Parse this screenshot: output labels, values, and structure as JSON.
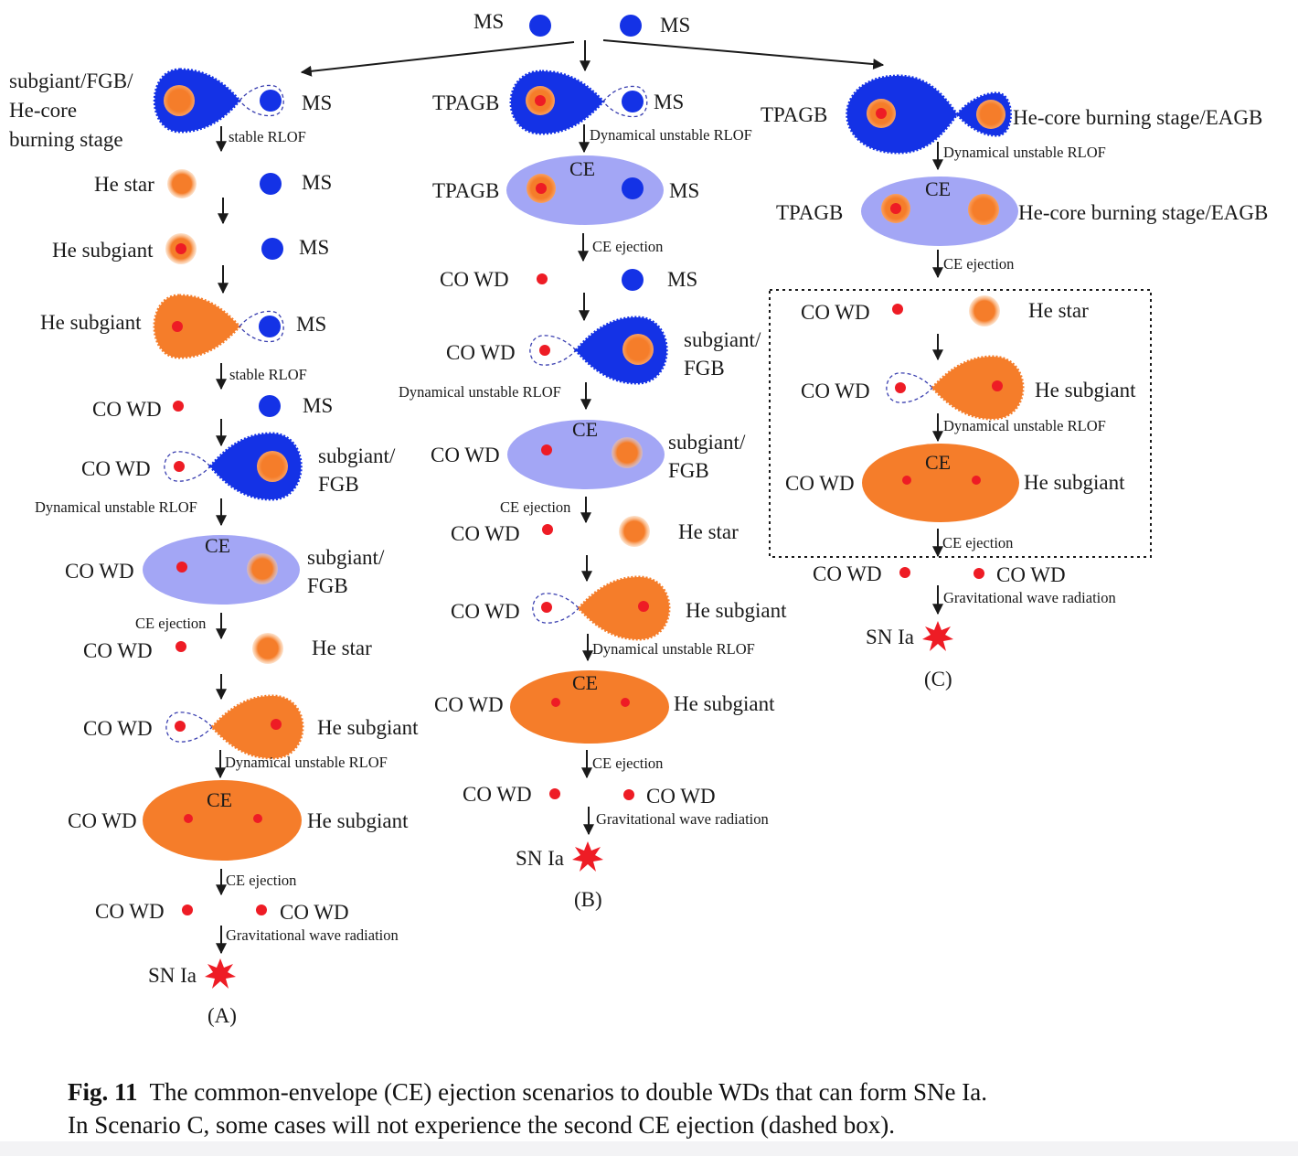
{
  "top": {
    "left_star": "MS",
    "right_star": "MS"
  },
  "scenario_a": {
    "rows": [
      {
        "left": "subgiant/FGB/",
        "left2": "He-core",
        "left3": "burning stage",
        "right": "MS"
      },
      {
        "process": "stable RLOF"
      },
      {
        "left": "He star",
        "right": "MS"
      },
      {
        "left": "He subgiant",
        "right": "MS"
      },
      {
        "left": "He subgiant",
        "right": "MS"
      },
      {
        "process": "stable RLOF"
      },
      {
        "left": "CO WD",
        "right": "MS"
      },
      {
        "left": "CO WD",
        "right": "subgiant/",
        "right2": "FGB"
      },
      {
        "process": "Dynamical unstable RLOF"
      },
      {
        "ce": "CE",
        "left": "CO WD",
        "right": "subgiant/",
        "right2": "FGB"
      },
      {
        "process": "CE ejection"
      },
      {
        "left": "CO WD",
        "right": "He star"
      },
      {
        "left": "CO WD",
        "right": "He subgiant"
      },
      {
        "process": "Dynamical unstable RLOF"
      },
      {
        "ce": "CE",
        "left": "CO WD",
        "right": "He subgiant"
      },
      {
        "process": "CE ejection"
      },
      {
        "left": "CO WD",
        "right": "CO WD"
      },
      {
        "process": "Gravitational wave radiation"
      },
      {
        "left": "SN Ia"
      }
    ],
    "caption": "(A)"
  },
  "scenario_b": {
    "rows": [
      {
        "left": "TPAGB",
        "right": "MS"
      },
      {
        "process": "Dynamical unstable RLOF"
      },
      {
        "ce": "CE",
        "left": "TPAGB",
        "right": "MS"
      },
      {
        "process": "CE ejection"
      },
      {
        "left": "CO WD",
        "right": "MS"
      },
      {
        "left": "CO WD",
        "right": "subgiant/",
        "right2": "FGB"
      },
      {
        "process": "Dynamical unstable RLOF"
      },
      {
        "ce": "CE",
        "left": "CO WD",
        "right": "subgiant/",
        "right2": "FGB"
      },
      {
        "process": "CE ejection"
      },
      {
        "left": "CO WD",
        "right": "He star"
      },
      {
        "left": "CO WD",
        "right": "He subgiant"
      },
      {
        "process": "Dynamical unstable RLOF"
      },
      {
        "ce": "CE",
        "left": "CO WD",
        "right": "He subgiant"
      },
      {
        "process": "CE ejection"
      },
      {
        "left": "CO WD",
        "right": "CO WD"
      },
      {
        "process": "Gravitational wave radiation"
      },
      {
        "left": "SN Ia"
      }
    ],
    "caption": "(B)"
  },
  "scenario_c": {
    "rows": [
      {
        "left": "TPAGB",
        "right": "He-core burning stage/EAGB"
      },
      {
        "process": "Dynamical unstable RLOF"
      },
      {
        "ce": "CE",
        "left": "TPAGB",
        "right": "He-core burning stage/EAGB"
      },
      {
        "process": "CE ejection"
      },
      {
        "left": "CO WD",
        "right": "He star"
      },
      {
        "left": "CO WD",
        "right": "He subgiant"
      },
      {
        "process": "Dynamical unstable RLOF"
      },
      {
        "ce": "CE",
        "left": "CO WD",
        "right": "He subgiant"
      },
      {
        "process": "CE ejection"
      },
      {
        "left": "CO WD",
        "right": "CO WD"
      },
      {
        "process": "Gravitational wave radiation"
      },
      {
        "left": "SN Ia"
      }
    ],
    "caption": "(C)"
  },
  "figure_caption": {
    "label": "Fig. 11",
    "line1": "The common-envelope (CE) ejection scenarios to double WDs that can form SNe Ia.",
    "line2": "In Scenario C, some cases will not experience the second CE ejection (dashed box)."
  },
  "colors": {
    "ms_blue": "#1432e6",
    "he_orange": "#f57d2a",
    "core_red": "#ee1c25",
    "ce_lavender": "#a3a6f5",
    "ce_orange": "#f57d2a",
    "sn_red": "#ee1c25"
  }
}
